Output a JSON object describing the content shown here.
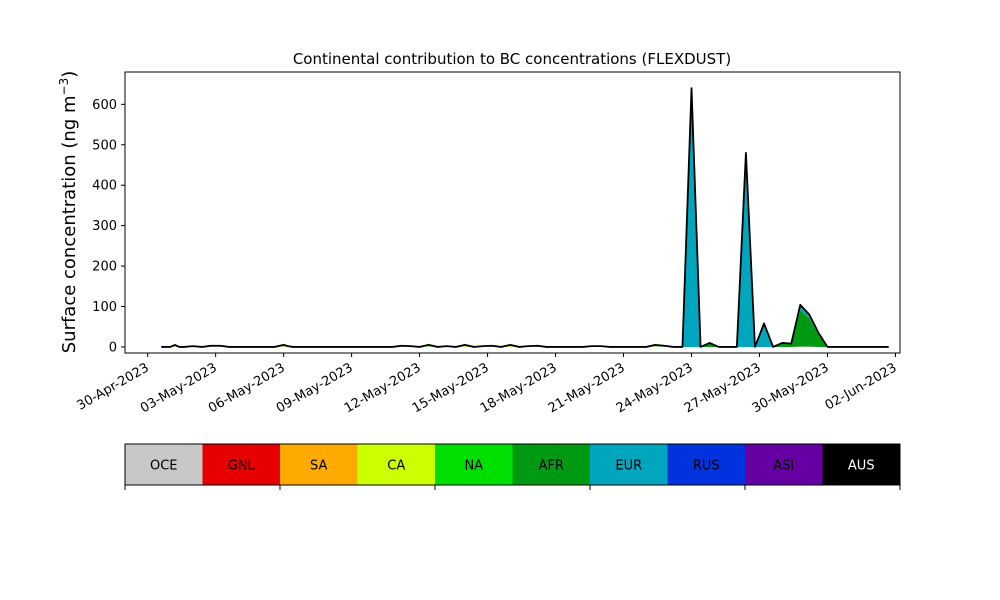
{
  "chart_data": {
    "type": "area",
    "title": "Continental contribution to BC concentrations (FLEXDUST)",
    "ylabel_main": "Surface concentration (ng m",
    "ylabel_sup": "−3",
    "ylabel_close": ")",
    "ylim": [
      -15,
      680
    ],
    "yticks": [
      0,
      100,
      200,
      300,
      400,
      500,
      600
    ],
    "x_start": "2023-04-29",
    "x_end": "2023-06-02",
    "xlim_days": [
      0,
      34.2
    ],
    "xticks": [
      {
        "label": "30-Apr-2023",
        "day": 1
      },
      {
        "label": "03-May-2023",
        "day": 4
      },
      {
        "label": "06-May-2023",
        "day": 7
      },
      {
        "label": "09-May-2023",
        "day": 10
      },
      {
        "label": "12-May-2023",
        "day": 13
      },
      {
        "label": "15-May-2023",
        "day": 16
      },
      {
        "label": "18-May-2023",
        "day": 19
      },
      {
        "label": "21-May-2023",
        "day": 22
      },
      {
        "label": "24-May-2023",
        "day": 25
      },
      {
        "label": "27-May-2023",
        "day": 28
      },
      {
        "label": "30-May-2023",
        "day": 31
      },
      {
        "label": "02-Jun-2023",
        "day": 34
      }
    ],
    "legend_placement": "below",
    "regions": [
      {
        "name": "OCE",
        "color": "#c8c8c8",
        "text_color": "#000000"
      },
      {
        "name": "GNL",
        "color": "#e60000",
        "text_color": "#000000"
      },
      {
        "name": "SA",
        "color": "#ffaa00",
        "text_color": "#000000"
      },
      {
        "name": "CA",
        "color": "#ccff00",
        "text_color": "#000000"
      },
      {
        "name": "NA",
        "color": "#00e000",
        "text_color": "#000000"
      },
      {
        "name": "AFR",
        "color": "#009a12",
        "text_color": "#000000"
      },
      {
        "name": "EUR",
        "color": "#00a6bd",
        "text_color": "#000000"
      },
      {
        "name": "RUS",
        "color": "#0033dd",
        "text_color": "#000000"
      },
      {
        "name": "ASI",
        "color": "#6600a3",
        "text_color": "#000000"
      },
      {
        "name": "AUS",
        "color": "#000000",
        "text_color": "#ffffff"
      }
    ],
    "x": [
      1.6,
      2.0,
      2.2,
      2.4,
      2.6,
      3.0,
      3.4,
      3.8,
      4.2,
      4.6,
      5.0,
      5.4,
      5.8,
      6.2,
      6.6,
      7.0,
      7.2,
      7.4,
      7.8,
      8.2,
      8.6,
      9.0,
      9.4,
      9.8,
      10.2,
      10.6,
      11.0,
      11.4,
      11.8,
      12.2,
      12.6,
      13.0,
      13.4,
      13.8,
      14.2,
      14.6,
      15.0,
      15.4,
      15.8,
      16.2,
      16.6,
      17.0,
      17.4,
      17.8,
      18.2,
      18.6,
      19.0,
      19.4,
      19.8,
      20.2,
      20.6,
      21.0,
      21.4,
      21.8,
      22.2,
      22.6,
      23.0,
      23.4,
      23.8,
      24.2,
      24.6,
      25.0,
      25.4,
      25.8,
      26.2,
      26.6,
      27.0,
      27.4,
      27.8,
      28.2,
      28.6,
      29.0,
      29.4,
      29.8,
      30.2,
      30.6,
      31.0,
      31.4,
      31.8,
      32.2,
      32.6,
      33.0,
      33.4,
      33.7
    ],
    "total": [
      0,
      0,
      5,
      0,
      0,
      2,
      0,
      3,
      3,
      0,
      0,
      0,
      0,
      0,
      0,
      5,
      2,
      0,
      0,
      0,
      0,
      0,
      0,
      0,
      0,
      0,
      0,
      0,
      0,
      3,
      2,
      0,
      5,
      0,
      2,
      0,
      5,
      0,
      2,
      3,
      0,
      5,
      0,
      2,
      3,
      0,
      0,
      0,
      0,
      0,
      2,
      2,
      0,
      0,
      0,
      0,
      0,
      5,
      3,
      0,
      0,
      640,
      0,
      10,
      0,
      0,
      0,
      480,
      0,
      58,
      0,
      10,
      8,
      104,
      80,
      35,
      0,
      0,
      0,
      0,
      0,
      0,
      0,
      0
    ],
    "series": [
      {
        "name": "OCE",
        "values": [
          0,
          0,
          1,
          0,
          0,
          1,
          0,
          1,
          1,
          0,
          0,
          0,
          0,
          0,
          0,
          1,
          1,
          0,
          0,
          0,
          0,
          0,
          0,
          0,
          0,
          0,
          0,
          0,
          0,
          1,
          1,
          0,
          1,
          0,
          1,
          0,
          1,
          0,
          1,
          1,
          0,
          1,
          0,
          1,
          1,
          0,
          0,
          0,
          0,
          0,
          1,
          1,
          0,
          0,
          0,
          0,
          0,
          1,
          1,
          0,
          0,
          0,
          0,
          0,
          0,
          0,
          0,
          0,
          0,
          0,
          0,
          0,
          0,
          1,
          1,
          0,
          0,
          0,
          0,
          0,
          0,
          0,
          0,
          0
        ]
      },
      {
        "name": "GNL",
        "values": [
          0,
          0,
          0,
          0,
          0,
          0,
          0,
          0,
          0,
          0,
          0,
          0,
          0,
          0,
          0,
          0,
          0,
          0,
          0,
          0,
          0,
          0,
          0,
          0,
          0,
          0,
          0,
          0,
          0,
          0,
          0,
          0,
          0,
          0,
          0,
          0,
          0,
          0,
          0,
          0,
          0,
          0,
          0,
          0,
          0,
          0,
          0,
          0,
          0,
          0,
          0,
          0,
          0,
          0,
          0,
          0,
          0,
          0,
          0,
          0,
          0,
          0,
          0,
          0,
          0,
          0,
          0,
          0,
          0,
          0,
          0,
          0,
          0,
          0,
          0,
          0,
          0,
          0,
          0,
          0,
          0,
          0,
          0,
          0
        ]
      },
      {
        "name": "SA",
        "values": [
          0,
          0,
          0,
          0,
          0,
          0,
          0,
          0,
          0,
          0,
          0,
          0,
          0,
          0,
          0,
          0,
          0,
          0,
          0,
          0,
          0,
          0,
          0,
          0,
          0,
          0,
          0,
          0,
          0,
          0,
          0,
          0,
          0,
          0,
          0,
          0,
          0,
          0,
          0,
          0,
          0,
          0,
          0,
          0,
          0,
          0,
          0,
          0,
          0,
          0,
          0,
          0,
          0,
          0,
          0,
          0,
          0,
          0,
          0,
          0,
          0,
          0,
          0,
          0,
          0,
          0,
          0,
          0,
          0,
          0,
          0,
          0,
          0,
          0,
          0,
          0,
          0,
          0,
          0,
          0,
          0,
          0,
          0,
          0
        ]
      },
      {
        "name": "CA",
        "values": [
          0,
          0,
          1,
          0,
          0,
          0,
          0,
          1,
          1,
          0,
          0,
          0,
          0,
          0,
          0,
          2,
          0,
          0,
          0,
          0,
          0,
          0,
          0,
          0,
          0,
          0,
          0,
          0,
          0,
          1,
          0,
          0,
          1,
          0,
          0,
          0,
          2,
          0,
          0,
          1,
          0,
          2,
          0,
          0,
          1,
          0,
          0,
          0,
          0,
          0,
          1,
          1,
          0,
          0,
          0,
          0,
          0,
          1,
          0,
          0,
          0,
          0,
          0,
          0,
          0,
          0,
          0,
          0,
          0,
          0,
          0,
          0,
          0,
          0,
          0,
          0,
          0,
          0,
          0,
          0,
          0,
          0,
          0,
          0
        ]
      },
      {
        "name": "NA",
        "values": [
          0,
          0,
          1,
          0,
          0,
          1,
          0,
          1,
          1,
          0,
          0,
          0,
          0,
          0,
          0,
          2,
          1,
          0,
          0,
          0,
          0,
          0,
          0,
          0,
          0,
          0,
          0,
          0,
          0,
          1,
          1,
          0,
          2,
          0,
          1,
          0,
          2,
          0,
          1,
          1,
          0,
          2,
          0,
          1,
          1,
          0,
          0,
          0,
          0,
          0,
          0,
          0,
          0,
          0,
          0,
          0,
          0,
          1,
          0,
          0,
          0,
          0,
          0,
          0,
          0,
          0,
          0,
          0,
          0,
          0,
          0,
          0,
          0,
          0,
          0,
          0,
          0,
          0,
          0,
          0,
          0,
          0,
          0,
          0
        ]
      },
      {
        "name": "AFR",
        "values": [
          0,
          0,
          0,
          0,
          0,
          0,
          0,
          0,
          0,
          0,
          0,
          0,
          0,
          0,
          0,
          0,
          0,
          0,
          0,
          0,
          0,
          0,
          0,
          0,
          0,
          0,
          0,
          0,
          0,
          0,
          0,
          0,
          0,
          0,
          0,
          0,
          0,
          0,
          0,
          0,
          0,
          0,
          0,
          0,
          0,
          0,
          0,
          0,
          0,
          0,
          0,
          0,
          0,
          0,
          0,
          0,
          0,
          0,
          0,
          0,
          0,
          0,
          0,
          8,
          0,
          0,
          0,
          0,
          0,
          0,
          0,
          8,
          6,
          90,
          70,
          30,
          0,
          0,
          0,
          0,
          0,
          0,
          0,
          0
        ]
      },
      {
        "name": "EUR",
        "values": [
          0,
          0,
          2,
          0,
          0,
          0,
          0,
          0,
          0,
          0,
          0,
          0,
          0,
          0,
          0,
          0,
          0,
          0,
          0,
          0,
          0,
          0,
          0,
          0,
          0,
          0,
          0,
          0,
          0,
          0,
          0,
          0,
          1,
          0,
          0,
          0,
          0,
          0,
          0,
          0,
          0,
          0,
          0,
          0,
          0,
          0,
          0,
          0,
          0,
          0,
          0,
          0,
          0,
          0,
          0,
          0,
          0,
          2,
          2,
          0,
          0,
          600,
          0,
          2,
          0,
          0,
          0,
          450,
          0,
          55,
          0,
          2,
          2,
          10,
          9,
          5,
          0,
          0,
          0,
          0,
          0,
          0,
          0,
          0
        ]
      },
      {
        "name": "RUS",
        "values": [
          0,
          0,
          0,
          0,
          0,
          0,
          0,
          0,
          0,
          0,
          0,
          0,
          0,
          0,
          0,
          0,
          0,
          0,
          0,
          0,
          0,
          0,
          0,
          0,
          0,
          0,
          0,
          0,
          0,
          0,
          0,
          0,
          0,
          0,
          0,
          0,
          0,
          0,
          0,
          0,
          0,
          0,
          0,
          0,
          0,
          0,
          0,
          0,
          0,
          0,
          0,
          0,
          0,
          0,
          0,
          0,
          0,
          0,
          0,
          0,
          0,
          30,
          0,
          0,
          0,
          0,
          0,
          20,
          0,
          2,
          0,
          0,
          0,
          0,
          0,
          0,
          0,
          0,
          0,
          0,
          0,
          0,
          0,
          0
        ]
      },
      {
        "name": "ASI",
        "values": [
          0,
          0,
          0,
          0,
          0,
          0,
          0,
          0,
          0,
          0,
          0,
          0,
          0,
          0,
          0,
          0,
          0,
          0,
          0,
          0,
          0,
          0,
          0,
          0,
          0,
          0,
          0,
          0,
          0,
          0,
          0,
          0,
          0,
          0,
          0,
          0,
          0,
          0,
          0,
          0,
          0,
          0,
          0,
          0,
          0,
          0,
          0,
          0,
          0,
          0,
          0,
          0,
          0,
          0,
          0,
          0,
          0,
          0,
          0,
          0,
          0,
          10,
          0,
          0,
          0,
          0,
          0,
          10,
          0,
          1,
          0,
          0,
          0,
          3,
          0,
          0,
          0,
          0,
          0,
          0,
          0,
          0,
          0,
          0
        ]
      },
      {
        "name": "AUS",
        "values": [
          0,
          0,
          0,
          0,
          0,
          0,
          0,
          0,
          0,
          0,
          0,
          0,
          0,
          0,
          0,
          0,
          0,
          0,
          0,
          0,
          0,
          0,
          0,
          0,
          0,
          0,
          0,
          0,
          0,
          0,
          0,
          0,
          0,
          0,
          0,
          0,
          0,
          0,
          0,
          0,
          0,
          0,
          0,
          0,
          0,
          0,
          0,
          0,
          0,
          0,
          0,
          0,
          0,
          0,
          0,
          0,
          0,
          0,
          0,
          0,
          0,
          0,
          0,
          0,
          0,
          0,
          0,
          0,
          0,
          0,
          0,
          0,
          0,
          0,
          0,
          0,
          0,
          0,
          0,
          0,
          0,
          0,
          0,
          0
        ]
      }
    ]
  }
}
